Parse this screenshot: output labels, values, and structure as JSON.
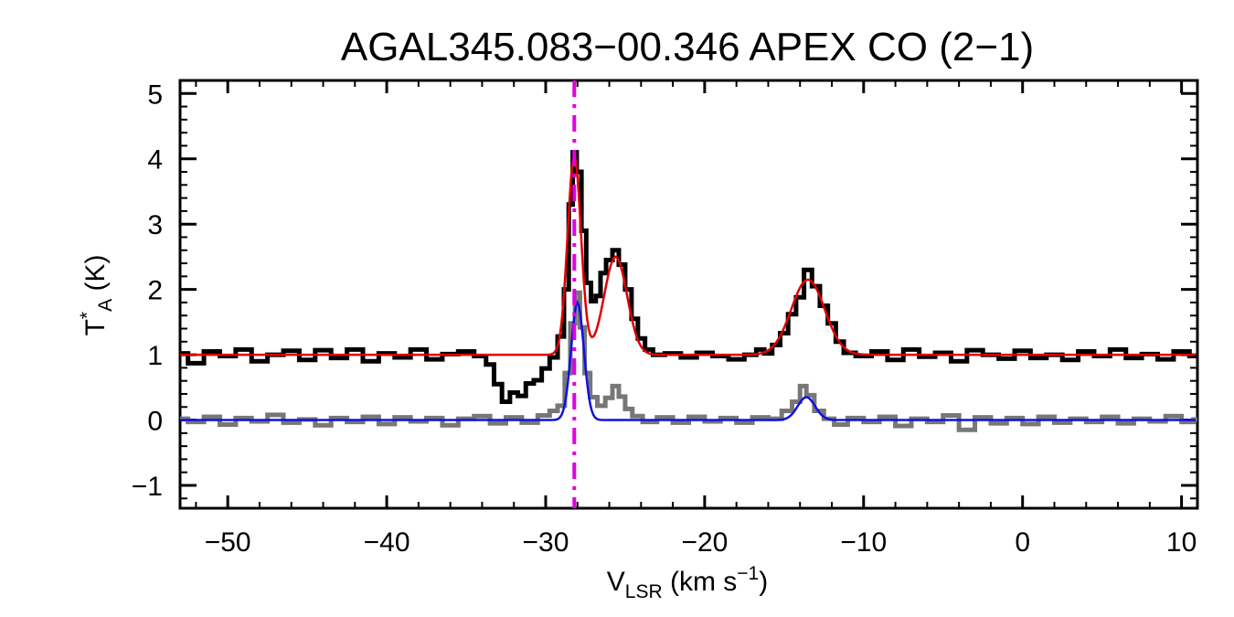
{
  "chart_data": {
    "type": "line",
    "title": "AGAL345.083−00.346  APEX CO (2−1)",
    "xlabel": {
      "main": "V",
      "sub": "LSR",
      "unit_prefix": " (km s",
      "unit_sup": "−1",
      "unit_suffix": ")"
    },
    "ylabel": {
      "main": "T",
      "sup": "*",
      "sub": "A",
      "unit": " (K)"
    },
    "xlim": [
      -53,
      11
    ],
    "ylim": [
      -1.35,
      5.2
    ],
    "x_ticks": [
      -50,
      -40,
      -30,
      -20,
      -10,
      0,
      10
    ],
    "x_tick_labels": [
      "−50",
      "−40",
      "−30",
      "−20",
      "−10",
      "0",
      "10"
    ],
    "y_ticks": [
      -1,
      0,
      1,
      2,
      3,
      4,
      5
    ],
    "y_tick_labels": [
      "−1",
      "0",
      "1",
      "2",
      "3",
      "4",
      "5"
    ],
    "grid": false,
    "vertical_marker": {
      "x": -28.2,
      "color": "#e000e0",
      "style": "dash-dot"
    },
    "series": [
      {
        "kind": "observed-spectrum-upper",
        "color": "#000000",
        "style": "histogram",
        "offset": 1.0,
        "points": [
          [
            -53,
            1.02
          ],
          [
            -52,
            0.87
          ],
          [
            -51,
            1.05
          ],
          [
            -50,
            0.98
          ],
          [
            -49,
            1.08
          ],
          [
            -48,
            0.9
          ],
          [
            -47,
            1.0
          ],
          [
            -46,
            1.06
          ],
          [
            -45,
            0.92
          ],
          [
            -44,
            1.07
          ],
          [
            -43,
            0.95
          ],
          [
            -42,
            1.08
          ],
          [
            -41,
            0.9
          ],
          [
            -40,
            1.02
          ],
          [
            -39,
            0.96
          ],
          [
            -38,
            1.08
          ],
          [
            -37,
            0.93
          ],
          [
            -36,
            1.01
          ],
          [
            -35,
            1.05
          ],
          [
            -34,
            0.98
          ],
          [
            -33.5,
            0.85
          ],
          [
            -33,
            0.55
          ],
          [
            -32.5,
            0.28
          ],
          [
            -32,
            0.42
          ],
          [
            -31.5,
            0.37
          ],
          [
            -31,
            0.56
          ],
          [
            -30.5,
            0.61
          ],
          [
            -30,
            0.79
          ],
          [
            -29.5,
            0.96
          ],
          [
            -29,
            1.28
          ],
          [
            -28.7,
            2.0
          ],
          [
            -28.4,
            3.3
          ],
          [
            -28.2,
            4.1
          ],
          [
            -27.9,
            3.8
          ],
          [
            -27.6,
            2.9
          ],
          [
            -27.3,
            2.1
          ],
          [
            -27.0,
            1.82
          ],
          [
            -26.7,
            1.9
          ],
          [
            -26.4,
            2.25
          ],
          [
            -26.0,
            2.45
          ],
          [
            -25.6,
            2.6
          ],
          [
            -25.2,
            2.38
          ],
          [
            -24.8,
            2.0
          ],
          [
            -24.4,
            1.55
          ],
          [
            -24.0,
            1.25
          ],
          [
            -23.5,
            1.08
          ],
          [
            -23,
            1.0
          ],
          [
            -22,
            1.02
          ],
          [
            -21,
            0.96
          ],
          [
            -20,
            1.03
          ],
          [
            -19,
            0.98
          ],
          [
            -18,
            0.93
          ],
          [
            -17,
            1.0
          ],
          [
            -16.5,
            1.08
          ],
          [
            -16,
            1.02
          ],
          [
            -15.5,
            1.15
          ],
          [
            -15,
            1.33
          ],
          [
            -14.5,
            1.62
          ],
          [
            -14,
            1.88
          ],
          [
            -13.5,
            2.3
          ],
          [
            -13,
            2.05
          ],
          [
            -12.5,
            1.75
          ],
          [
            -12,
            1.48
          ],
          [
            -11.5,
            1.2
          ],
          [
            -11,
            1.03
          ],
          [
            -10,
            0.98
          ],
          [
            -9,
            1.05
          ],
          [
            -8,
            0.92
          ],
          [
            -7,
            1.08
          ],
          [
            -6,
            0.97
          ],
          [
            -5,
            1.03
          ],
          [
            -4,
            0.9
          ],
          [
            -3,
            1.07
          ],
          [
            -2,
            1.0
          ],
          [
            -1,
            0.94
          ],
          [
            0,
            1.06
          ],
          [
            1,
            0.95
          ],
          [
            2,
            1.0
          ],
          [
            3,
            0.92
          ],
          [
            4,
            1.05
          ],
          [
            5,
            0.98
          ],
          [
            6,
            1.08
          ],
          [
            7,
            0.95
          ],
          [
            8,
            1.01
          ],
          [
            9,
            0.93
          ],
          [
            10,
            1.05
          ],
          [
            11,
            0.98
          ]
        ]
      },
      {
        "kind": "observed-spectrum-lower",
        "color": "#777777",
        "style": "histogram",
        "offset": 0.0,
        "points": [
          [
            -53,
            0.02
          ],
          [
            -52,
            -0.03
          ],
          [
            -51,
            0.05
          ],
          [
            -50,
            -0.07
          ],
          [
            -49,
            0.03
          ],
          [
            -48,
            -0.02
          ],
          [
            -47,
            0.08
          ],
          [
            -46,
            -0.04
          ],
          [
            -45,
            0.01
          ],
          [
            -44,
            -0.08
          ],
          [
            -43,
            0.03
          ],
          [
            -42,
            -0.03
          ],
          [
            -41,
            0.05
          ],
          [
            -40,
            -0.06
          ],
          [
            -39,
            0.04
          ],
          [
            -38,
            -0.02
          ],
          [
            -37,
            0.03
          ],
          [
            -36,
            -0.08
          ],
          [
            -35,
            0.02
          ],
          [
            -34,
            0.06
          ],
          [
            -33,
            -0.05
          ],
          [
            -32,
            0.04
          ],
          [
            -31,
            -0.04
          ],
          [
            -30,
            0.07
          ],
          [
            -29.5,
            0.14
          ],
          [
            -29,
            0.22
          ],
          [
            -28.6,
            0.72
          ],
          [
            -28.3,
            1.48
          ],
          [
            -28.0,
            1.95
          ],
          [
            -27.7,
            1.42
          ],
          [
            -27.4,
            0.72
          ],
          [
            -27.0,
            0.35
          ],
          [
            -26.5,
            0.22
          ],
          [
            -26.0,
            0.34
          ],
          [
            -25.6,
            0.52
          ],
          [
            -25.2,
            0.36
          ],
          [
            -24.8,
            0.17
          ],
          [
            -24.3,
            0.06
          ],
          [
            -23.5,
            -0.03
          ],
          [
            -22.5,
            0.04
          ],
          [
            -21.5,
            -0.04
          ],
          [
            -20.5,
            0.05
          ],
          [
            -19.5,
            -0.02
          ],
          [
            -18.5,
            0.03
          ],
          [
            -17.5,
            -0.04
          ],
          [
            -16.5,
            0.04
          ],
          [
            -15.5,
            0.02
          ],
          [
            -14.8,
            0.14
          ],
          [
            -14.2,
            0.28
          ],
          [
            -13.8,
            0.52
          ],
          [
            -13.4,
            0.38
          ],
          [
            -12.8,
            0.14
          ],
          [
            -12.2,
            0.02
          ],
          [
            -11.5,
            -0.07
          ],
          [
            -10.5,
            0.03
          ],
          [
            -9.5,
            -0.03
          ],
          [
            -8.5,
            0.05
          ],
          [
            -7.5,
            -0.09
          ],
          [
            -6.5,
            0.02
          ],
          [
            -5.5,
            -0.03
          ],
          [
            -4.5,
            0.07
          ],
          [
            -3.5,
            -0.15
          ],
          [
            -2.5,
            0.04
          ],
          [
            -1.5,
            -0.05
          ],
          [
            -0.5,
            0.03
          ],
          [
            0.5,
            -0.06
          ],
          [
            1.5,
            0.05
          ],
          [
            2.5,
            -0.04
          ],
          [
            3.5,
            0.02
          ],
          [
            4.5,
            -0.03
          ],
          [
            5.5,
            0.05
          ],
          [
            6.5,
            -0.05
          ],
          [
            7.5,
            0.02
          ],
          [
            8.5,
            -0.02
          ],
          [
            9.5,
            0.06
          ],
          [
            10.5,
            -0.03
          ],
          [
            11,
            0.01
          ]
        ]
      },
      {
        "kind": "fit-upper",
        "color": "#e00000",
        "style": "smooth",
        "baseline": 1.0,
        "gaussians": [
          {
            "amp": 3.05,
            "center": -28.2,
            "sigma": 0.42
          },
          {
            "amp": 1.5,
            "center": -25.6,
            "sigma": 0.72
          },
          {
            "amp": 1.15,
            "center": -13.5,
            "sigma": 1.05
          }
        ]
      },
      {
        "kind": "fit-lower",
        "color": "#1010e0",
        "style": "smooth",
        "baseline": 0.0,
        "gaussians": [
          {
            "amp": 1.8,
            "center": -28.0,
            "sigma": 0.4
          },
          {
            "amp": 0.35,
            "center": -13.6,
            "sigma": 0.55
          }
        ]
      }
    ]
  }
}
